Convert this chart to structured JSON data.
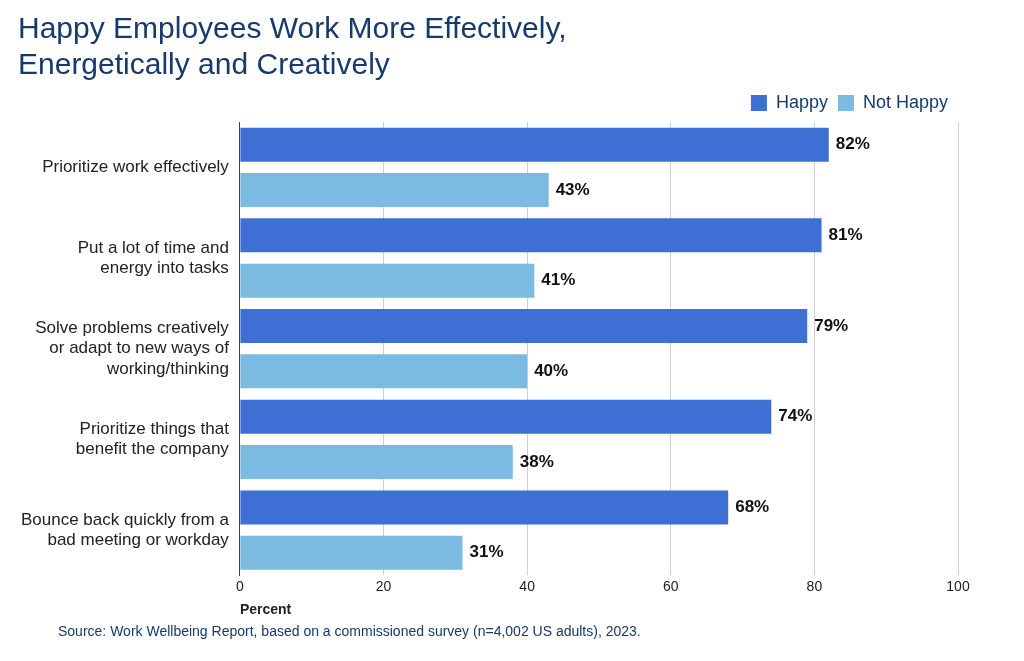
{
  "chart_data": {
    "type": "bar",
    "orientation": "horizontal",
    "title": "Happy Employees Work More Effectively, Energetically and Creatively",
    "categories": [
      "Prioritize work effectively",
      "Put a lot of time and energy into tasks",
      "Solve problems creatively or adapt to new ways of working/thinking",
      "Prioritize things that benefit the company",
      "Bounce back quickly from a bad meeting or workday"
    ],
    "series": [
      {
        "name": "Happy",
        "color": "#3d6fd4",
        "values": [
          82,
          81,
          79,
          74,
          68
        ],
        "value_labels": [
          "82%",
          "81%",
          "79%",
          "74%",
          "68%"
        ]
      },
      {
        "name": "Not Happy",
        "color": "#7bbbe2",
        "values": [
          43,
          41,
          40,
          38,
          31
        ],
        "value_labels": [
          "43%",
          "41%",
          "40%",
          "38%",
          "31%"
        ]
      }
    ],
    "xlabel": "Percent",
    "xlim": [
      0,
      100
    ],
    "xticks": [
      0,
      20,
      40,
      60,
      80,
      100
    ],
    "grid": "x",
    "legend": "top right",
    "annotations": [
      "Source: Work Wellbeing Report, based on a commissioned survey (n=4,002 US adults), 2023."
    ]
  }
}
